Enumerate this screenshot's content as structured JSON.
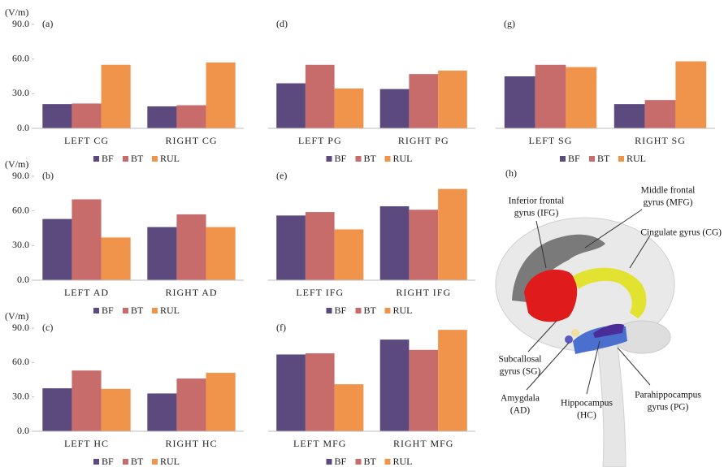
{
  "chart_data": [
    {
      "type": "bar",
      "panel": "(a)",
      "y_label": "(V/m)",
      "categories": [
        "LEFT CG",
        "RIGHT CG"
      ],
      "ylim": [
        0,
        90
      ],
      "yticks": [
        {
          "value": 0,
          "label": "0.0"
        },
        {
          "value": 30,
          "label": "30.0"
        },
        {
          "value": 60,
          "label": "60.0"
        },
        {
          "value": 90,
          "label": "90.0"
        }
      ],
      "series": [
        {
          "name": "BF",
          "color": "#5c4a7e",
          "values": [
            21,
            19
          ]
        },
        {
          "name": "BT",
          "color": "#c86b6b",
          "values": [
            21.5,
            20
          ]
        },
        {
          "name": "RUL",
          "color": "#f0944b",
          "values": [
            55,
            57
          ]
        }
      ]
    },
    {
      "type": "bar",
      "panel": "(d)",
      "categories": [
        "LEFT PG",
        "RIGHT PG"
      ],
      "ylim": [
        0,
        90
      ],
      "series": [
        {
          "name": "BF",
          "color": "#5c4a7e",
          "values": [
            39,
            34
          ]
        },
        {
          "name": "BT",
          "color": "#c86b6b",
          "values": [
            55,
            47
          ]
        },
        {
          "name": "RUL",
          "color": "#f0944b",
          "values": [
            34.5,
            50
          ]
        }
      ]
    },
    {
      "type": "bar",
      "panel": "(g)",
      "categories": [
        "LEFT SG",
        "RIGHT SG"
      ],
      "ylim": [
        0,
        90
      ],
      "series": [
        {
          "name": "BF",
          "color": "#5c4a7e",
          "values": [
            45,
            21
          ]
        },
        {
          "name": "BT",
          "color": "#c86b6b",
          "values": [
            55,
            24.5
          ]
        },
        {
          "name": "RUL",
          "color": "#f0944b",
          "values": [
            53,
            58
          ]
        }
      ]
    },
    {
      "type": "bar",
      "panel": "(b)",
      "y_label": "(V/m)",
      "categories": [
        "LEFT AD",
        "RIGHT AD"
      ],
      "ylim": [
        0,
        90
      ],
      "yticks": [
        {
          "value": 0,
          "label": "0.0"
        },
        {
          "value": 30,
          "label": "30.0"
        },
        {
          "value": 60,
          "label": "60.0"
        },
        {
          "value": 90,
          "label": "90.0"
        }
      ],
      "series": [
        {
          "name": "BF",
          "color": "#5c4a7e",
          "values": [
            53,
            46
          ]
        },
        {
          "name": "BT",
          "color": "#c86b6b",
          "values": [
            70,
            57
          ]
        },
        {
          "name": "RUL",
          "color": "#f0944b",
          "values": [
            37,
            46
          ]
        }
      ]
    },
    {
      "type": "bar",
      "panel": "(e)",
      "categories": [
        "LEFT IFG",
        "RIGHT IFG"
      ],
      "ylim": [
        0,
        90
      ],
      "series": [
        {
          "name": "BF",
          "color": "#5c4a7e",
          "values": [
            56,
            64
          ]
        },
        {
          "name": "BT",
          "color": "#c86b6b",
          "values": [
            59,
            61
          ]
        },
        {
          "name": "RUL",
          "color": "#f0944b",
          "values": [
            44,
            79
          ]
        }
      ]
    },
    {
      "type": "bar",
      "panel": "(c)",
      "y_label": "(V/m)",
      "categories": [
        "LEFT HC",
        "RIGHT HC"
      ],
      "ylim": [
        0,
        90
      ],
      "yticks": [
        {
          "value": 0,
          "label": "0.0"
        },
        {
          "value": 30,
          "label": "30.0"
        },
        {
          "value": 60,
          "label": "60.0"
        },
        {
          "value": 90,
          "label": "90.0"
        }
      ],
      "series": [
        {
          "name": "BF",
          "color": "#5c4a7e",
          "values": [
            37.5,
            33
          ]
        },
        {
          "name": "BT",
          "color": "#c86b6b",
          "values": [
            53,
            46
          ]
        },
        {
          "name": "RUL",
          "color": "#f0944b",
          "values": [
            37,
            51
          ]
        }
      ]
    },
    {
      "type": "bar",
      "panel": "(f)",
      "categories": [
        "LEFT MFG",
        "RIGHT MFG"
      ],
      "ylim": [
        0,
        90
      ],
      "series": [
        {
          "name": "BF",
          "color": "#5c4a7e",
          "values": [
            67,
            80
          ]
        },
        {
          "name": "BT",
          "color": "#c86b6b",
          "values": [
            68,
            71
          ]
        },
        {
          "name": "RUL",
          "color": "#f0944b",
          "values": [
            41,
            88.5
          ]
        }
      ]
    }
  ],
  "diagram": {
    "panel": "(h)",
    "labels": [
      [
        "Inferior frontal",
        "gyrus (IFG)"
      ],
      [
        "Middle frontal",
        "gyrus (MFG)"
      ],
      [
        "Cingulate gyrus (CG)"
      ],
      [
        "Subcallosal",
        "gyrus (SG)"
      ],
      [
        "Amygdala",
        "(AD)"
      ],
      [
        "Hippocampus",
        "(HC)"
      ],
      [
        "Parahippocampus",
        "gyrus (PG)"
      ]
    ]
  }
}
